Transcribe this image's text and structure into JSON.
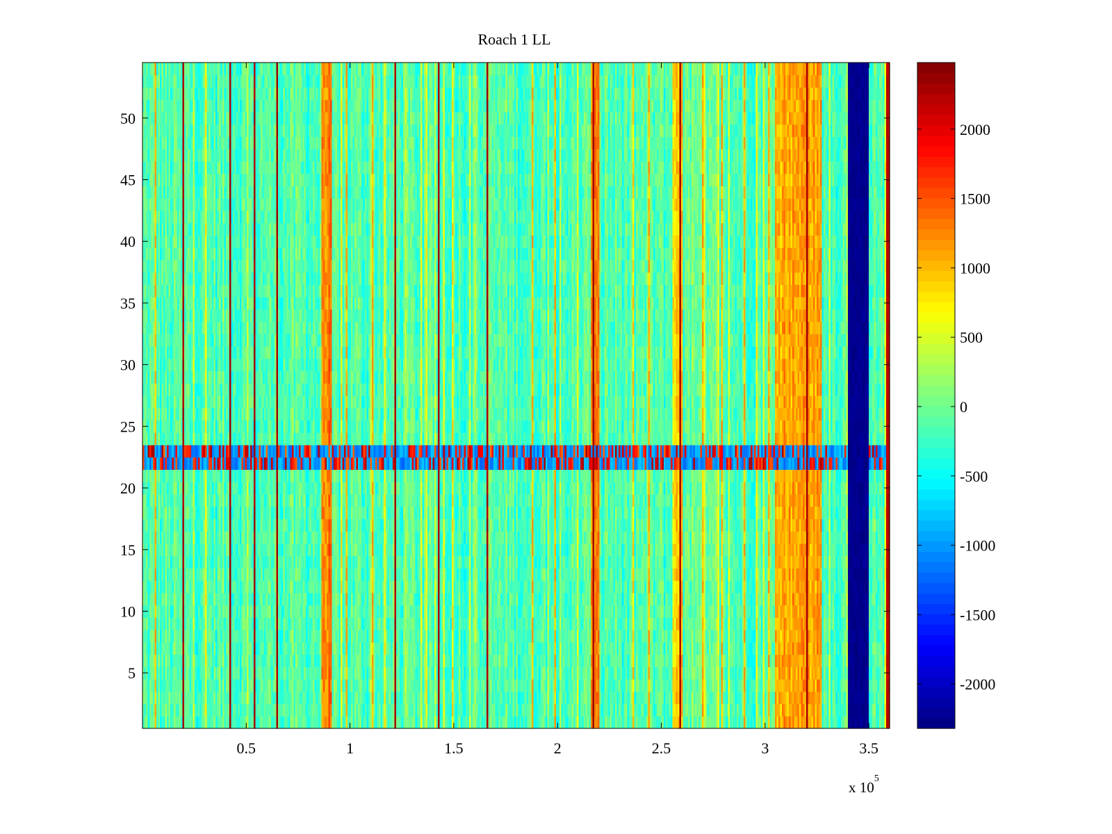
{
  "chart_data": {
    "type": "heatmap",
    "title": "Roach 1 LL",
    "xlabel": "",
    "ylabel": "",
    "x_exponent_label": {
      "base": "x 10",
      "exponent": "5"
    },
    "xlim": [
      0,
      360000
    ],
    "ylim": [
      0.5,
      54.5
    ],
    "x_ticks": [
      50000,
      100000,
      150000,
      200000,
      250000,
      300000,
      350000
    ],
    "x_tick_labels": [
      "0.5",
      "1",
      "1.5",
      "2",
      "2.5",
      "3",
      "3.5"
    ],
    "y_ticks": [
      5,
      10,
      15,
      20,
      25,
      30,
      35,
      40,
      45,
      50
    ],
    "y_tick_labels": [
      "5",
      "10",
      "15",
      "20",
      "25",
      "30",
      "35",
      "40",
      "45",
      "50"
    ],
    "rows": 54,
    "colorbar": {
      "colormap": "jet",
      "clim": [
        -2320,
        2480
      ],
      "ticks": [
        -2000,
        -1500,
        -1000,
        -500,
        0,
        500,
        1000,
        1500,
        2000
      ],
      "tick_labels": [
        "-2000",
        "-1500",
        "-1000",
        "-500",
        "0",
        "500",
        "1000",
        "1500",
        "2000"
      ]
    },
    "baseline_value": -150,
    "strong_columns_x": [
      20000,
      42000,
      54000,
      65000,
      122000,
      143000,
      166000,
      217000,
      259000,
      320000
    ],
    "strong_column_value": 2300,
    "medium_columns_x": [
      6000,
      98000,
      111000,
      188000,
      199000,
      244000,
      270000,
      279000,
      290000,
      302000
    ],
    "medium_column_value": 1000,
    "warm_bands": [
      {
        "x_range": [
          86000,
          91000
        ],
        "value": 1300
      },
      {
        "x_range": [
          216000,
          220000
        ],
        "value": 1200
      },
      {
        "x_range": [
          255000,
          260000
        ],
        "value": 900
      },
      {
        "x_range": [
          305000,
          327000
        ],
        "value": 1100
      }
    ],
    "cold_band": {
      "x_range": [
        340000,
        350000
      ],
      "value": -2250
    },
    "right_edge_column": {
      "x_range": [
        358000,
        360000
      ],
      "value": 2200
    },
    "noisy_rows": {
      "y_range": [
        21.5,
        23.5
      ],
      "low_value": -1000,
      "high_value": 2300
    }
  }
}
